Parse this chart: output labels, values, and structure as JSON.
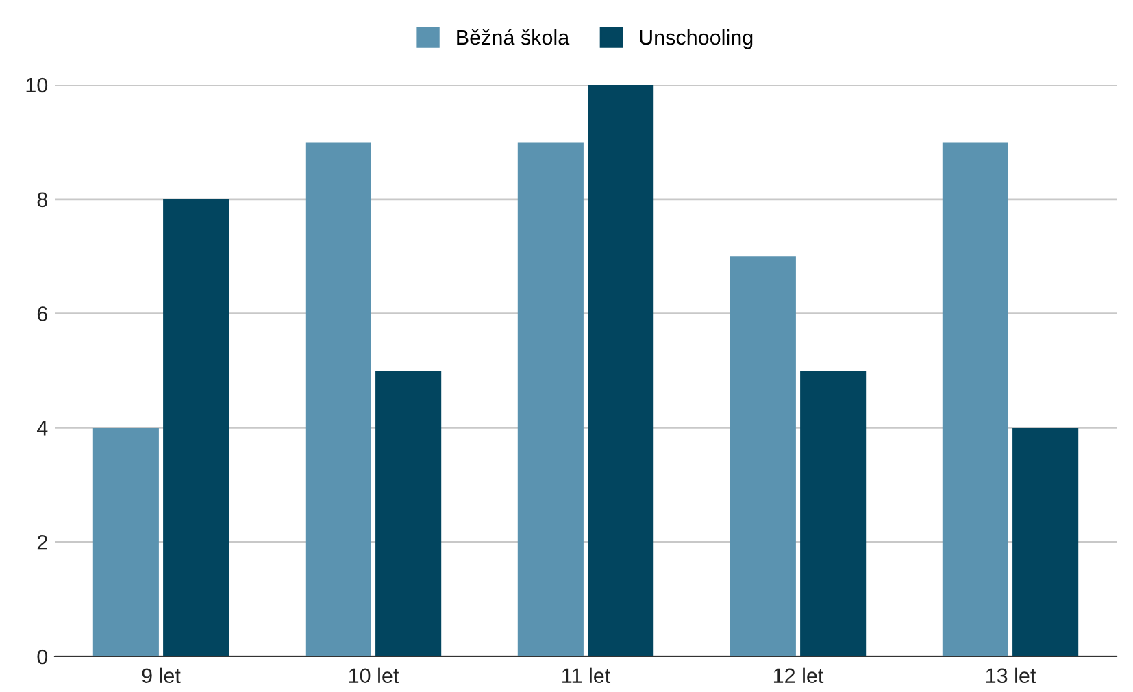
{
  "chart_data": {
    "type": "bar",
    "categories": [
      "9 let",
      "10 let",
      "11 let",
      "12 let",
      "13 let"
    ],
    "series": [
      {
        "name": "Běžná škola",
        "color": "#5b93b0",
        "values": [
          4,
          9,
          9,
          7,
          9
        ]
      },
      {
        "name": "Unschooling",
        "color": "#02455f",
        "values": [
          8,
          5,
          10,
          5,
          4
        ]
      }
    ],
    "ylim": [
      0,
      10
    ],
    "yticks": [
      0,
      2,
      4,
      6,
      8,
      10
    ],
    "grid": "y",
    "legend": "top"
  }
}
